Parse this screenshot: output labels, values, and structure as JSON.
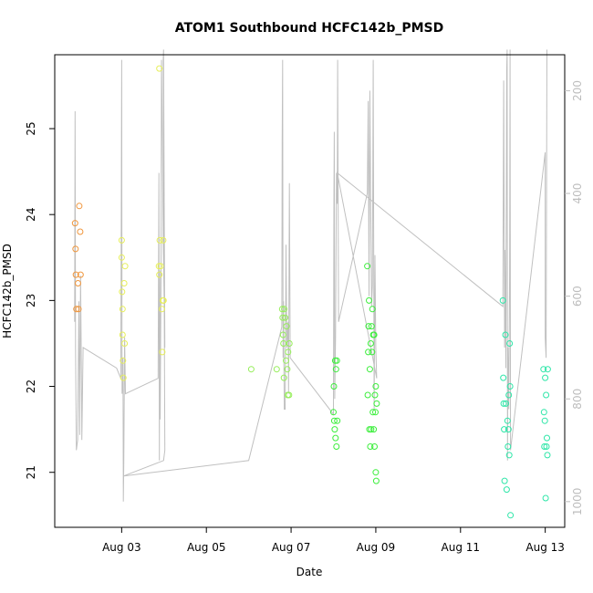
{
  "chart_data": {
    "type": "scatter",
    "title": "ATOM1 Southbound HCFC142b_PMSD",
    "xlabel": "Date",
    "ylabel": "HCFC142b_PMSD",
    "x_ticks": [
      "Aug 03",
      "Aug 05",
      "Aug 07",
      "Aug 09",
      "Aug 11",
      "Aug 13"
    ],
    "x_tick_days": [
      3,
      5,
      7,
      9,
      11,
      13
    ],
    "xlim_days": [
      1.42,
      13.46
    ],
    "y_ticks": [
      "21",
      "22",
      "23",
      "24",
      "25"
    ],
    "y_tick_values": [
      21,
      22,
      23,
      24,
      25
    ],
    "ylim": [
      20.36,
      25.86
    ],
    "y2_ticks": [
      "200",
      "400",
      "600",
      "800",
      "1000"
    ],
    "y2_tick_values": [
      200,
      400,
      600,
      800,
      1000
    ],
    "y2lim": [
      1050,
      130
    ],
    "y2_reversed": true,
    "grid": false,
    "series": [
      {
        "color": "#f0963c",
        "points": [
          [
            1.9,
            23.9
          ],
          [
            1.91,
            23.6
          ],
          [
            1.92,
            23.3
          ],
          [
            1.93,
            22.9
          ],
          [
            1.97,
            23.2
          ],
          [
            1.98,
            22.9
          ],
          [
            2.0,
            24.1
          ],
          [
            2.02,
            23.8
          ],
          [
            2.03,
            23.3
          ]
        ]
      },
      {
        "color": "#e6ee5a",
        "points": [
          [
            3.0,
            23.7
          ],
          [
            3.0,
            23.5
          ],
          [
            3.01,
            23.1
          ],
          [
            3.02,
            22.9
          ],
          [
            3.02,
            22.6
          ],
          [
            3.03,
            22.3
          ],
          [
            3.04,
            22.1
          ],
          [
            3.06,
            23.2
          ],
          [
            3.07,
            22.5
          ],
          [
            3.08,
            23.4
          ],
          [
            3.89,
            25.7
          ],
          [
            3.88,
            23.4
          ],
          [
            3.89,
            23.3
          ],
          [
            3.9,
            23.7
          ],
          [
            3.92,
            23.4
          ],
          [
            3.95,
            22.9
          ],
          [
            3.96,
            22.4
          ],
          [
            3.97,
            23.0
          ],
          [
            3.98,
            23.7
          ],
          [
            3.99,
            23.0
          ]
        ]
      },
      {
        "color": "#96ee5a",
        "points": [
          [
            6.06,
            22.2
          ],
          [
            6.66,
            22.2
          ],
          [
            6.79,
            22.9
          ],
          [
            6.8,
            22.8
          ],
          [
            6.81,
            22.6
          ],
          [
            6.82,
            22.5
          ],
          [
            6.83,
            22.1
          ],
          [
            6.84,
            22.9
          ],
          [
            6.86,
            22.8
          ],
          [
            6.88,
            22.3
          ],
          [
            6.89,
            22.7
          ],
          [
            6.91,
            22.2
          ],
          [
            6.92,
            21.9
          ],
          [
            6.93,
            22.4
          ],
          [
            6.95,
            21.9
          ],
          [
            6.96,
            22.5
          ]
        ]
      },
      {
        "color": "#3cee3c",
        "points": [
          [
            8.0,
            21.7
          ],
          [
            8.01,
            22.0
          ],
          [
            8.02,
            21.6
          ],
          [
            8.03,
            21.5
          ],
          [
            8.04,
            22.3
          ],
          [
            8.05,
            21.4
          ],
          [
            8.06,
            22.2
          ],
          [
            8.07,
            21.3
          ],
          [
            8.08,
            22.3
          ],
          [
            8.09,
            21.6
          ],
          [
            8.8,
            23.4
          ],
          [
            8.81,
            21.9
          ],
          [
            8.82,
            22.4
          ],
          [
            8.83,
            22.7
          ],
          [
            8.84,
            23.0
          ],
          [
            8.85,
            21.5
          ],
          [
            8.86,
            22.2
          ],
          [
            8.87,
            21.3
          ],
          [
            8.88,
            22.5
          ],
          [
            8.89,
            21.5
          ],
          [
            8.9,
            22.7
          ],
          [
            8.91,
            22.4
          ],
          [
            8.92,
            22.9
          ],
          [
            8.93,
            21.7
          ],
          [
            8.94,
            22.6
          ],
          [
            8.95,
            21.5
          ],
          [
            8.96,
            22.6
          ],
          [
            8.97,
            21.3
          ],
          [
            8.98,
            21.9
          ],
          [
            8.99,
            21.7
          ],
          [
            9.0,
            22.0
          ],
          [
            9.0,
            21.0
          ],
          [
            9.01,
            20.9
          ],
          [
            9.02,
            21.8
          ]
        ]
      },
      {
        "color": "#2ee6a8",
        "points": [
          [
            12.0,
            23.0
          ],
          [
            12.01,
            22.1
          ],
          [
            12.02,
            21.8
          ],
          [
            12.03,
            21.5
          ],
          [
            12.04,
            20.9
          ],
          [
            12.06,
            22.6
          ],
          [
            12.07,
            21.8
          ],
          [
            12.09,
            20.8
          ],
          [
            12.11,
            21.6
          ],
          [
            12.12,
            21.3
          ],
          [
            12.13,
            21.5
          ],
          [
            12.14,
            21.9
          ],
          [
            12.15,
            21.2
          ],
          [
            12.16,
            22.5
          ],
          [
            12.17,
            22.0
          ],
          [
            12.18,
            20.5
          ],
          [
            12.96,
            22.2
          ],
          [
            12.97,
            21.7
          ],
          [
            12.98,
            21.3
          ],
          [
            12.99,
            21.6
          ],
          [
            13.0,
            22.1
          ],
          [
            13.01,
            20.7
          ],
          [
            13.02,
            21.9
          ],
          [
            13.03,
            21.3
          ],
          [
            13.04,
            21.4
          ],
          [
            13.05,
            21.2
          ],
          [
            13.06,
            22.2
          ]
        ]
      }
    ],
    "pressure_line": {
      "color": "#c0c0c0",
      "points": [
        [
          1.89,
          650
        ],
        [
          1.9,
          240
        ],
        [
          1.91,
          700
        ],
        [
          1.93,
          900
        ],
        [
          1.96,
          880
        ],
        [
          1.99,
          610
        ],
        [
          2.01,
          870
        ],
        [
          2.03,
          560
        ],
        [
          2.05,
          760
        ],
        [
          2.06,
          880
        ],
        [
          2.09,
          700
        ],
        [
          2.88,
          740
        ],
        [
          2.98,
          760
        ],
        [
          3.0,
          140
        ],
        [
          3.01,
          790
        ],
        [
          3.03,
          720
        ],
        [
          3.04,
          1000
        ],
        [
          3.05,
          920
        ],
        [
          3.07,
          680
        ],
        [
          3.09,
          790
        ],
        [
          3.86,
          760
        ],
        [
          3.88,
          360
        ],
        [
          3.89,
          920
        ],
        [
          3.9,
          550
        ],
        [
          3.91,
          840
        ],
        [
          3.93,
          560
        ],
        [
          3.94,
          140
        ],
        [
          3.96,
          280
        ],
        [
          3.98,
          500
        ],
        [
          4.0,
          590
        ],
        [
          4.02,
          700
        ],
        [
          3.99,
          120
        ],
        [
          3.98,
          140
        ],
        [
          4.02,
          900
        ],
        [
          3.99,
          920
        ],
        [
          3.05,
          950
        ],
        [
          6.0,
          920
        ],
        [
          6.78,
          660
        ],
        [
          6.79,
          300
        ],
        [
          6.8,
          140
        ],
        [
          6.81,
          720
        ],
        [
          6.82,
          610
        ],
        [
          6.84,
          820
        ],
        [
          6.86,
          820
        ],
        [
          6.88,
          500
        ],
        [
          6.89,
          620
        ],
        [
          6.9,
          700
        ],
        [
          6.93,
          650
        ],
        [
          6.94,
          790
        ],
        [
          6.96,
          380
        ],
        [
          6.98,
          720
        ],
        [
          8.0,
          830
        ],
        [
          8.01,
          420
        ],
        [
          8.02,
          280
        ],
        [
          8.03,
          800
        ],
        [
          8.05,
          680
        ],
        [
          8.07,
          360
        ],
        [
          8.09,
          420
        ],
        [
          8.1,
          140
        ],
        [
          8.12,
          650
        ],
        [
          8.8,
          400
        ],
        [
          8.82,
          220
        ],
        [
          8.84,
          600
        ],
        [
          8.86,
          200
        ],
        [
          8.88,
          430
        ],
        [
          8.9,
          620
        ],
        [
          8.92,
          580
        ],
        [
          8.94,
          140
        ],
        [
          8.96,
          820
        ],
        [
          8.98,
          520
        ],
        [
          9.0,
          700
        ],
        [
          9.02,
          760
        ],
        [
          8.09,
          360
        ],
        [
          12.0,
          620
        ],
        [
          12.02,
          180
        ],
        [
          12.04,
          700
        ],
        [
          12.05,
          510
        ],
        [
          12.07,
          740
        ],
        [
          12.09,
          160
        ],
        [
          12.1,
          120
        ],
        [
          12.11,
          920
        ],
        [
          12.12,
          700
        ],
        [
          12.14,
          820
        ],
        [
          12.16,
          550
        ],
        [
          12.17,
          120
        ],
        [
          12.18,
          900
        ],
        [
          13.0,
          320
        ],
        [
          13.0,
          680
        ],
        [
          13.02,
          720
        ],
        [
          13.04,
          120
        ]
      ]
    }
  }
}
